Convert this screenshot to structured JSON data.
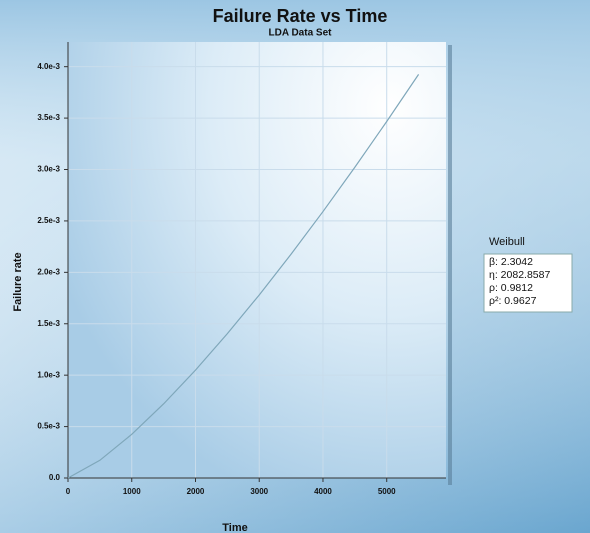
{
  "chart_data": {
    "type": "line",
    "title": "Failure Rate vs Time",
    "subtitle": "LDA Data Set",
    "x_label": "Time",
    "y_label": "Failure rate",
    "x": [
      0,
      500,
      1000,
      1500,
      2000,
      2500,
      3000,
      3500,
      4000,
      4500,
      5000,
      5500
    ],
    "series": [
      {
        "name": "Weibull",
        "color": "#7fa7ba",
        "values": [
          0,
          0.000172,
          0.000425,
          0.000721,
          0.001049,
          0.001404,
          0.00178,
          0.002177,
          0.002591,
          0.003022,
          0.003467,
          0.003925
        ]
      }
    ],
    "xlim": [
      0,
      5930
    ],
    "xticks": [
      0,
      1000,
      2000,
      3000,
      4000,
      5000
    ],
    "ylim": [
      0,
      0.00424
    ],
    "yticks": [
      {
        "value": 0,
        "label": "0.0"
      },
      {
        "value": 0.0005,
        "label": "0.5e-3"
      },
      {
        "value": 0.001,
        "label": "1.0e-3"
      },
      {
        "value": 0.0015,
        "label": "1.5e-3"
      },
      {
        "value": 0.002,
        "label": "2.0e-3"
      },
      {
        "value": 0.0025,
        "label": "2.5e-3"
      },
      {
        "value": 0.003,
        "label": "3.0e-3"
      },
      {
        "value": 0.0035,
        "label": "3.5e-3"
      },
      {
        "value": 0.004,
        "label": "4.0e-3"
      }
    ],
    "grid": true,
    "legend": {
      "title": "Weibull",
      "entries": [
        "β: 2.3042",
        "η: 2082.8587",
        "ρ: 0.9812",
        "ρ²: 0.9627"
      ]
    }
  }
}
